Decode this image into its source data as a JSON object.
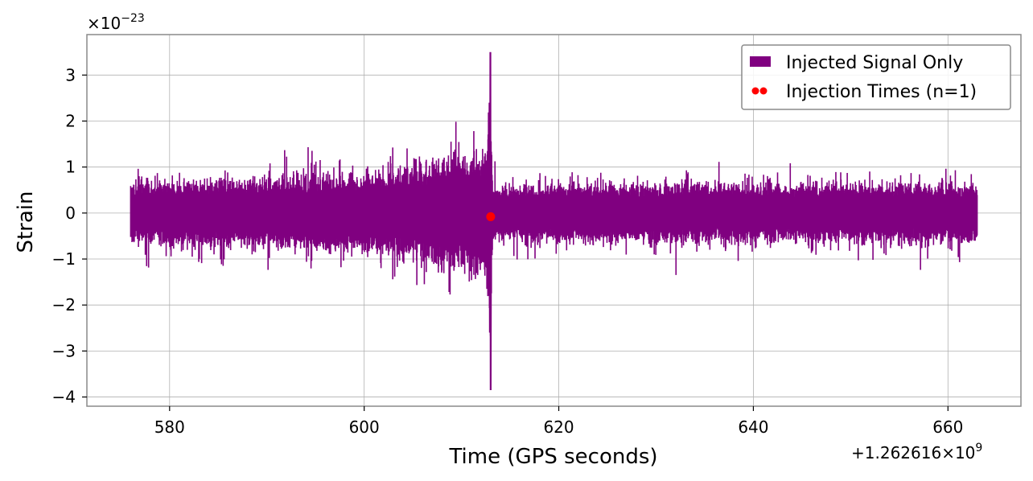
{
  "chart_data": {
    "type": "line",
    "title": "",
    "xlabel": "Time (GPS seconds)",
    "ylabel": "Strain",
    "x_offset_label": "+1.262616×10",
    "x_offset_exponent": "9",
    "y_scale_label": "×10",
    "y_scale_exponent": "−23",
    "xlim": [
      571.5,
      667.5
    ],
    "ylim": [
      -4.2,
      3.88
    ],
    "x_ticks": [
      580,
      600,
      620,
      640,
      660
    ],
    "x_tick_labels": [
      "580",
      "600",
      "620",
      "640",
      "660"
    ],
    "y_ticks": [
      -4,
      -3,
      -2,
      -1,
      0,
      1,
      2,
      3
    ],
    "y_tick_labels": [
      "−4",
      "−3",
      "−2",
      "−1",
      "0",
      "1",
      "2",
      "3"
    ],
    "grid": true,
    "legend_position": "top-right",
    "series": [
      {
        "name": "Injected Signal Only",
        "color": "#800080",
        "kind": "line",
        "x_range": [
          576,
          663
        ],
        "noise_envelope": {
          "x": [
            576,
            590,
            600,
            605,
            610,
            612.5,
            613.0,
            613.2,
            613.6,
            620,
            640,
            663
          ],
          "amplitude": [
            0.65,
            0.7,
            0.82,
            0.95,
            1.15,
            1.3,
            2.5,
            0.55,
            0.55,
            0.6,
            0.6,
            0.6
          ]
        },
        "peak": {
          "x": 613.0,
          "max": 3.5,
          "min": -3.85
        },
        "approximate": true
      },
      {
        "name": "Injection Times (n=1)",
        "color": "#ff0000",
        "kind": "scatter",
        "points": [
          {
            "x": 613.0,
            "y": -0.08
          }
        ]
      }
    ]
  }
}
